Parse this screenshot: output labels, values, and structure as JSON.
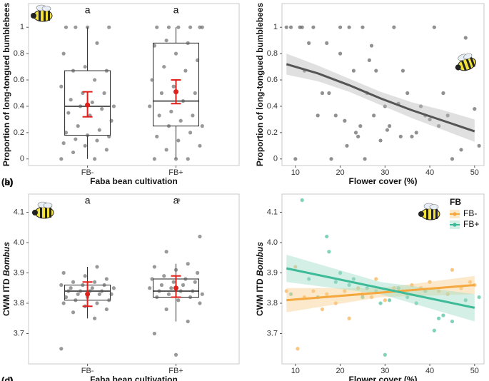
{
  "chart_data": [
    {
      "type": "box",
      "panel_label": "(a)",
      "xlabel": "Faba bean cultivation",
      "ylabel": "Proportion of long-tongued bumblebees",
      "ylim": [
        -0.05,
        1.18
      ],
      "yticks": [
        0,
        0.2,
        0.4,
        0.6,
        0.8,
        1
      ],
      "point_color": "#555555",
      "box_color": "#222222",
      "mean_color": "#e0201b",
      "groups": [
        {
          "label": "FB-",
          "letter": "a",
          "q1": 0.18,
          "median": 0.4,
          "q3": 0.67,
          "whisker_low": 0,
          "whisker_high": 1,
          "mean": 0.41,
          "ci_low": 0.32,
          "ci_high": 0.51,
          "points": [
            0,
            0,
            0.05,
            0.07,
            0.1,
            0.12,
            0.14,
            0.15,
            0.17,
            0.18,
            0.2,
            0.22,
            0.25,
            0.29,
            0.33,
            0.35,
            0.38,
            0.4,
            0.4,
            0.43,
            0.45,
            0.5,
            0.5,
            0.55,
            0.6,
            0.67,
            0.67,
            0.7,
            0.8,
            0.88,
            1,
            1,
            1,
            1
          ]
        },
        {
          "label": "FB+",
          "letter": "a",
          "q1": 0.25,
          "median": 0.44,
          "q3": 0.88,
          "whisker_low": 0,
          "whisker_high": 1,
          "mean": 0.51,
          "ci_low": 0.42,
          "ci_high": 0.6,
          "points": [
            0,
            0,
            0,
            0.07,
            0.1,
            0.14,
            0.17,
            0.2,
            0.25,
            0.25,
            0.29,
            0.33,
            0.33,
            0.36,
            0.4,
            0.44,
            0.5,
            0.5,
            0.55,
            0.6,
            0.67,
            0.7,
            0.75,
            0.8,
            0.86,
            0.88,
            0.9,
            1,
            1,
            1,
            1,
            1,
            1
          ]
        }
      ]
    },
    {
      "type": "scatter",
      "panel_label": "(b)",
      "xlabel": "Flower cover (%)",
      "ylabel": "Proportion of long-tongued bumblebees",
      "xlim": [
        7,
        52.1
      ],
      "xticks": [
        10,
        20,
        30,
        40,
        50
      ],
      "ylim": [
        -0.05,
        1.18
      ],
      "yticks": [
        0,
        0.2,
        0.4,
        0.6,
        0.8,
        1
      ],
      "series": [
        {
          "color": "#555555",
          "band_color": "#bbbbbb",
          "x": [
            8,
            9,
            10,
            11,
            11.5,
            12,
            13,
            14,
            15,
            16,
            17,
            17.5,
            18,
            19,
            20,
            20,
            21,
            21.5,
            22,
            23,
            23.5,
            24,
            24.5,
            25,
            25.5,
            26,
            26.5,
            27,
            27.5,
            28,
            29,
            30,
            30.5,
            31,
            32,
            33,
            33.5,
            34,
            35,
            36,
            37,
            38,
            39,
            40,
            41,
            42,
            43,
            44,
            45,
            47,
            48,
            50,
            51
          ],
          "y": [
            1,
            1,
            0,
            1,
            1,
            0.67,
            0.88,
            1,
            0.33,
            0.5,
            0.88,
            0.5,
            0,
            0.33,
            0.8,
            1,
            0.29,
            0.1,
            1,
            0.67,
            0.2,
            0.17,
            0.25,
            1,
            0,
            0.5,
            0.75,
            0.86,
            0.33,
            0.67,
            0.14,
            0.4,
            0.22,
            0.25,
            1,
            0.42,
            0.17,
            0.67,
            0.5,
            0.17,
            0.2,
            0.4,
            0.33,
            0.3,
            1,
            0.25,
            0.5,
            0.33,
            0,
            0.07,
            0.92,
            0.38,
            0.1
          ],
          "fit": {
            "x": [
              8,
              15,
              22,
              29,
              36,
              43,
              50
            ],
            "y": [
              0.72,
              0.65,
              0.56,
              0.46,
              0.37,
              0.29,
              0.21
            ],
            "lower": [
              0.64,
              0.59,
              0.51,
              0.41,
              0.31,
              0.22,
              0.13
            ],
            "upper": [
              0.8,
              0.71,
              0.61,
              0.51,
              0.43,
              0.37,
              0.3
            ]
          }
        }
      ]
    },
    {
      "type": "box",
      "panel_label": "(c)",
      "xlabel": "Faba bean cultivation",
      "ylabel": "CWM ITD",
      "ylabel_italic": "Bombus",
      "ylim": [
        3.6,
        4.16
      ],
      "yticks": [
        3.7,
        3.8,
        3.9,
        {
          "value": 4,
          "label": "4.0"
        },
        4.1
      ],
      "point_color": "#555555",
      "box_color": "#222222",
      "mean_color": "#e0201b",
      "groups": [
        {
          "label": "FB-",
          "letter": "a",
          "q1": 3.81,
          "median": 3.84,
          "q3": 3.86,
          "whisker_low": 3.75,
          "whisker_high": 3.92,
          "mean": 3.83,
          "ci_low": 3.79,
          "ci_high": 3.87,
          "points": [
            3.65,
            3.75,
            3.77,
            3.78,
            3.79,
            3.8,
            3.8,
            3.81,
            3.81,
            3.82,
            3.82,
            3.83,
            3.83,
            3.83,
            3.84,
            3.84,
            3.84,
            3.84,
            3.85,
            3.85,
            3.85,
            3.86,
            3.86,
            3.86,
            3.87,
            3.87,
            3.88,
            3.89,
            3.9,
            3.92
          ]
        },
        {
          "label": "FB+",
          "letter": "a",
          "q1": 3.82,
          "median": 3.84,
          "q3": 3.88,
          "whisker_low": 3.74,
          "whisker_high": 3.93,
          "mean": 3.85,
          "ci_low": 3.82,
          "ci_high": 3.89,
          "points": [
            3.63,
            3.7,
            3.74,
            3.78,
            3.8,
            3.81,
            3.82,
            3.82,
            3.83,
            3.83,
            3.84,
            3.84,
            3.84,
            3.85,
            3.85,
            3.86,
            3.86,
            3.87,
            3.87,
            3.88,
            3.88,
            3.89,
            3.9,
            3.91,
            3.92,
            3.93,
            3.97,
            4.02,
            4.14
          ]
        }
      ]
    },
    {
      "type": "scatter",
      "panel_label": "(d)",
      "xlabel": "Flower cover (%)",
      "ylabel": "CWM ITD",
      "ylabel_italic": "Bombus",
      "xlim": [
        7,
        52.1
      ],
      "xticks": [
        10,
        20,
        30,
        40,
        50
      ],
      "ylim": [
        3.6,
        4.16
      ],
      "yticks": [
        3.7,
        3.8,
        3.9,
        {
          "value": 4,
          "label": "4.0"
        },
        4.1
      ],
      "legend_title": "FB",
      "legend": "top-right",
      "series": [
        {
          "name": "FB-",
          "color": "#f5a83e",
          "band_color": "#f9cf8c",
          "x": [
            8,
            10,
            10.5,
            12,
            14,
            16,
            17,
            19,
            21,
            22,
            24,
            25,
            27,
            28,
            30,
            32,
            34,
            36,
            38,
            40,
            42,
            44,
            45,
            47,
            49,
            50
          ],
          "y": [
            3.84,
            3.92,
            3.65,
            3.82,
            3.84,
            3.78,
            3.83,
            3.8,
            3.84,
            3.75,
            3.85,
            3.83,
            3.82,
            3.88,
            3.81,
            3.85,
            3.84,
            3.86,
            3.85,
            3.87,
            3.84,
            3.83,
            3.91,
            3.85,
            3.87,
            3.86
          ],
          "fit": {
            "x": [
              8,
              29,
              50
            ],
            "y": [
              3.81,
              3.835,
              3.86
            ],
            "lower": [
              3.77,
              3.82,
              3.83
            ],
            "upper": [
              3.85,
              3.85,
              3.89
            ]
          }
        },
        {
          "name": "FB+",
          "color": "#3dba97",
          "band_color": "#9edcc8",
          "x": [
            9,
            11.5,
            13,
            15,
            17,
            17.5,
            19,
            20,
            22,
            23,
            25,
            26,
            28,
            29,
            30,
            31,
            33,
            35,
            37,
            39,
            41,
            42,
            43,
            45,
            48,
            51
          ],
          "y": [
            3.83,
            4.14,
            3.88,
            3.82,
            4.02,
            3.97,
            3.87,
            3.9,
            3.86,
            3.88,
            3.82,
            3.85,
            3.84,
            3.8,
            3.63,
            3.81,
            3.85,
            3.82,
            3.8,
            3.84,
            3.71,
            3.75,
            3.76,
            3.74,
            3.81,
            3.82
          ],
          "fit": {
            "x": [
              8,
              29,
              50
            ],
            "y": [
              3.915,
              3.85,
              3.785
            ],
            "lower": [
              3.87,
              3.83,
              3.74
            ],
            "upper": [
              3.96,
              3.87,
              3.83
            ]
          }
        }
      ]
    }
  ]
}
